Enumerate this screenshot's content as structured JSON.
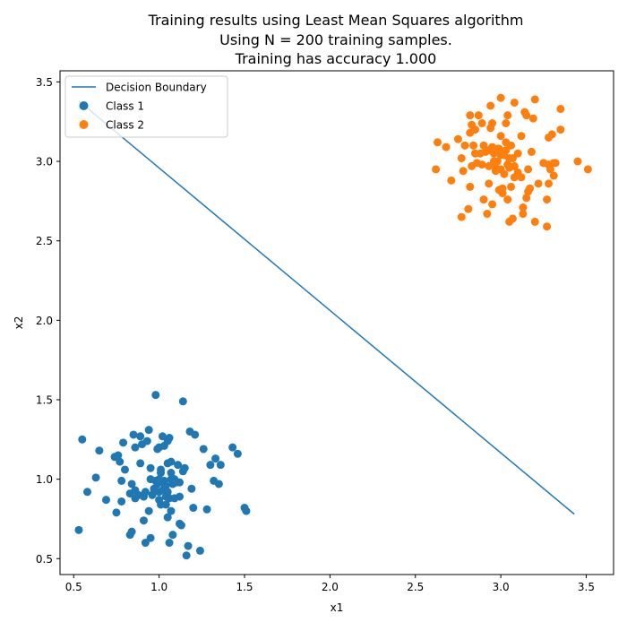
{
  "chart_data": {
    "type": "scatter",
    "title": [
      "Training results using Least Mean Squares algorithm",
      "Using N = 200 training samples.",
      "Training has accuracy 1.000"
    ],
    "xlabel": "x1",
    "ylabel": "x2",
    "xlim": [
      0.42,
      3.66
    ],
    "ylim": [
      0.4,
      3.57
    ],
    "xticks": [
      "0.5",
      "1.0",
      "1.5",
      "2.0",
      "2.5",
      "3.0",
      "3.5"
    ],
    "yticks": [
      "0.5",
      "1.0",
      "1.5",
      "2.0",
      "2.5",
      "3.0",
      "3.5"
    ],
    "grid": false,
    "legend_position": "top-left",
    "colors": {
      "decision_boundary": "#1f77b4",
      "class1": "#1f77b4",
      "class2": "#ff7f0e"
    },
    "line": {
      "name": "Decision Boundary",
      "x": [
        0.53,
        3.43
      ],
      "y": [
        3.38,
        0.78
      ]
    },
    "series": [
      {
        "name": "Class 1",
        "points": [
          [
            0.53,
            0.68
          ],
          [
            0.55,
            1.25
          ],
          [
            0.58,
            0.92
          ],
          [
            0.63,
            1.01
          ],
          [
            0.65,
            1.18
          ],
          [
            0.69,
            0.87
          ],
          [
            0.74,
            1.14
          ],
          [
            0.75,
            0.79
          ],
          [
            0.76,
            1.15
          ],
          [
            0.77,
            1.11
          ],
          [
            0.78,
            0.99
          ],
          [
            0.78,
            0.86
          ],
          [
            0.79,
            1.23
          ],
          [
            0.8,
            1.06
          ],
          [
            0.83,
            0.91
          ],
          [
            0.83,
            0.65
          ],
          [
            0.84,
            0.97
          ],
          [
            0.84,
            0.67
          ],
          [
            0.85,
            1.28
          ],
          [
            0.86,
            0.93
          ],
          [
            0.86,
            0.88
          ],
          [
            0.86,
            1.2
          ],
          [
            0.88,
            0.9
          ],
          [
            0.89,
            1.27
          ],
          [
            0.89,
            1.1
          ],
          [
            0.9,
            1.22
          ],
          [
            0.91,
            0.74
          ],
          [
            0.91,
            0.89
          ],
          [
            0.92,
            0.92
          ],
          [
            0.92,
            0.6
          ],
          [
            0.93,
            1.24
          ],
          [
            0.94,
            0.8
          ],
          [
            0.94,
            1.31
          ],
          [
            0.95,
            1.07
          ],
          [
            0.95,
            0.63
          ],
          [
            0.96,
            0.9
          ],
          [
            0.97,
            0.94
          ],
          [
            0.98,
            0.99
          ],
          [
            0.98,
            1.53
          ],
          [
            0.99,
            1.19
          ],
          [
            0.99,
            0.97
          ],
          [
            1.0,
            0.87
          ],
          [
            1.0,
            1.2
          ],
          [
            1.0,
            0.92
          ],
          [
            1.01,
            0.84
          ],
          [
            1.01,
            1.04
          ],
          [
            1.01,
            1.06
          ],
          [
            1.02,
            0.93
          ],
          [
            1.02,
            1.27
          ],
          [
            1.03,
            0.99
          ],
          [
            1.03,
            1.21
          ],
          [
            1.04,
            0.84
          ],
          [
            1.04,
            0.89
          ],
          [
            1.04,
            0.96
          ],
          [
            1.05,
            0.76
          ],
          [
            1.05,
            1.24
          ],
          [
            1.05,
            1.1
          ],
          [
            1.05,
            0.92
          ],
          [
            1.06,
            1.26
          ],
          [
            1.06,
            0.88
          ],
          [
            1.06,
            0.6
          ],
          [
            1.07,
            1.04
          ],
          [
            1.07,
            1.0
          ],
          [
            1.07,
            1.11
          ],
          [
            1.07,
            0.8
          ],
          [
            1.08,
            0.65
          ],
          [
            1.08,
            0.97
          ],
          [
            1.09,
            0.88
          ],
          [
            1.1,
            0.98
          ],
          [
            1.11,
            1.09
          ],
          [
            1.12,
            0.72
          ],
          [
            1.12,
            0.89
          ],
          [
            1.12,
            0.98
          ],
          [
            1.13,
            0.71
          ],
          [
            1.14,
            1.05
          ],
          [
            1.14,
            1.49
          ],
          [
            1.15,
            1.07
          ],
          [
            1.16,
            0.52
          ],
          [
            1.17,
            0.58
          ],
          [
            1.18,
            1.3
          ],
          [
            1.19,
            0.94
          ],
          [
            1.2,
            0.82
          ],
          [
            1.21,
            1.28
          ],
          [
            1.24,
            0.55
          ],
          [
            1.26,
            1.19
          ],
          [
            1.28,
            0.81
          ],
          [
            1.3,
            1.09
          ],
          [
            1.32,
            0.99
          ],
          [
            1.33,
            1.13
          ],
          [
            1.35,
            0.97
          ],
          [
            1.36,
            1.09
          ],
          [
            1.43,
            1.2
          ],
          [
            1.46,
            1.16
          ],
          [
            1.5,
            0.82
          ],
          [
            1.51,
            0.8
          ],
          [
            1.0,
            1.0
          ],
          [
            0.97,
            0.92
          ],
          [
            1.03,
            0.97
          ],
          [
            1.09,
            1.0
          ],
          [
            0.95,
            1.0
          ]
        ]
      },
      {
        "name": "Class 2",
        "points": [
          [
            2.62,
            2.95
          ],
          [
            2.63,
            3.12
          ],
          [
            2.68,
            3.09
          ],
          [
            2.71,
            2.88
          ],
          [
            2.75,
            3.14
          ],
          [
            2.77,
            2.65
          ],
          [
            2.77,
            3.02
          ],
          [
            2.78,
            2.94
          ],
          [
            2.79,
            3.1
          ],
          [
            2.81,
            2.7
          ],
          [
            2.82,
            3.29
          ],
          [
            2.82,
            3.18
          ],
          [
            2.82,
            2.84
          ],
          [
            2.83,
            3.23
          ],
          [
            2.83,
            2.97
          ],
          [
            2.84,
            3.1
          ],
          [
            2.85,
            3.2
          ],
          [
            2.85,
            3.05
          ],
          [
            2.86,
            2.99
          ],
          [
            2.87,
            3.29
          ],
          [
            2.88,
            3.05
          ],
          [
            2.89,
            3.24
          ],
          [
            2.89,
            2.98
          ],
          [
            2.9,
            2.76
          ],
          [
            2.91,
            3.06
          ],
          [
            2.92,
            2.67
          ],
          [
            2.93,
            3.07
          ],
          [
            2.93,
            2.86
          ],
          [
            2.94,
            3.21
          ],
          [
            2.94,
            3.35
          ],
          [
            2.95,
            2.73
          ],
          [
            2.95,
            3.09
          ],
          [
            2.95,
            3.24
          ],
          [
            2.96,
            3.05
          ],
          [
            2.97,
            2.96
          ],
          [
            2.97,
            2.94
          ],
          [
            2.98,
            3.08
          ],
          [
            2.99,
            2.82
          ],
          [
            2.99,
            3.08
          ],
          [
            3.0,
            3.4
          ],
          [
            3.0,
            3.16
          ],
          [
            3.0,
            3.06
          ],
          [
            3.01,
            2.8
          ],
          [
            3.01,
            2.83
          ],
          [
            3.02,
            3.04
          ],
          [
            3.03,
            3.24
          ],
          [
            3.03,
            3.07
          ],
          [
            3.04,
            2.76
          ],
          [
            3.04,
            2.98
          ],
          [
            3.04,
            3.29
          ],
          [
            3.05,
            2.62
          ],
          [
            3.05,
            2.96
          ],
          [
            3.06,
            3.1
          ],
          [
            3.06,
            2.84
          ],
          [
            3.07,
            3.02
          ],
          [
            3.07,
            2.64
          ],
          [
            3.08,
            3.37
          ],
          [
            3.08,
            2.97
          ],
          [
            3.1,
            2.93
          ],
          [
            3.12,
            3.16
          ],
          [
            3.13,
            2.67
          ],
          [
            3.13,
            2.71
          ],
          [
            3.14,
            3.31
          ],
          [
            3.15,
            3.29
          ],
          [
            3.15,
            2.77
          ],
          [
            3.16,
            2.81
          ],
          [
            3.16,
            2.95
          ],
          [
            3.17,
            2.83
          ],
          [
            3.18,
            3.06
          ],
          [
            3.19,
            3.27
          ],
          [
            3.2,
            3.39
          ],
          [
            3.2,
            2.62
          ],
          [
            3.22,
            2.86
          ],
          [
            3.25,
            2.99
          ],
          [
            3.27,
            2.59
          ],
          [
            3.27,
            2.76
          ],
          [
            3.28,
            2.86
          ],
          [
            3.28,
            2.98
          ],
          [
            3.28,
            3.15
          ],
          [
            3.29,
            2.95
          ],
          [
            3.3,
            3.17
          ],
          [
            3.31,
            2.91
          ],
          [
            3.31,
            2.99
          ],
          [
            3.32,
            2.99
          ],
          [
            3.35,
            3.33
          ],
          [
            3.35,
            3.2
          ],
          [
            3.45,
            3.0
          ],
          [
            3.51,
            2.95
          ],
          [
            3.0,
            2.95
          ],
          [
            3.02,
            2.92
          ],
          [
            2.98,
            3.0
          ],
          [
            3.05,
            3.02
          ],
          [
            2.9,
            3.1
          ],
          [
            3.1,
            3.05
          ],
          [
            3.08,
            2.9
          ],
          [
            2.93,
            2.97
          ],
          [
            3.12,
            2.9
          ],
          [
            3.03,
            3.12
          ],
          [
            2.96,
            3.0
          ],
          [
            3.0,
            3.04
          ]
        ]
      }
    ]
  }
}
